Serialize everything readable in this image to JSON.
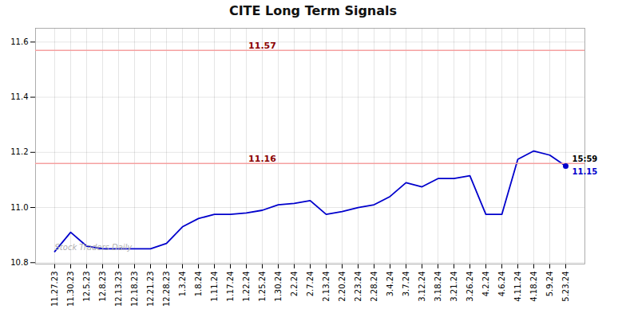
{
  "chart_data": {
    "type": "line",
    "title": "CITE Long Term Signals",
    "categories": [
      "11.27.23",
      "11.30.23",
      "12.5.23",
      "12.8.23",
      "12.13.23",
      "12.18.23",
      "12.21.23",
      "12.28.23",
      "1.3.24",
      "1.8.24",
      "1.11.24",
      "1.17.24",
      "1.22.24",
      "1.25.24",
      "1.30.24",
      "2.2.24",
      "2.7.24",
      "2.13.24",
      "2.20.24",
      "2.23.24",
      "2.28.24",
      "3.4.24",
      "3.7.24",
      "3.12.24",
      "3.18.24",
      "3.21.24",
      "3.26.24",
      "4.2.24",
      "4.6.24",
      "4.11.24",
      "4.18.24",
      "5.9.24",
      "5.23.24"
    ],
    "values": [
      10.84,
      10.91,
      10.86,
      10.85,
      10.85,
      10.85,
      10.85,
      10.87,
      10.93,
      10.96,
      10.975,
      10.975,
      10.98,
      10.99,
      11.01,
      11.015,
      11.025,
      10.975,
      10.985,
      11.0,
      11.01,
      11.04,
      11.09,
      11.075,
      11.105,
      11.105,
      11.115,
      10.975,
      10.975,
      11.175,
      11.205,
      11.19,
      11.15
    ],
    "color": "#0000cc",
    "ylim": [
      10.795,
      11.65
    ],
    "yticks": [
      10.8,
      {
        "value": 11.0,
        "label": "11.0"
      },
      11.2,
      11.4,
      11.6
    ],
    "grid": true,
    "annotations": [
      {
        "type": "hline",
        "value": 11.57,
        "label": "11.57",
        "color": "#f5a0a0"
      },
      {
        "type": "hline",
        "value": 11.16,
        "label": "11.16",
        "color": "#f5a0a0"
      },
      {
        "type": "point",
        "value": 11.15,
        "label": "11.15",
        "text": "15:59"
      },
      {
        "type": "text",
        "text": "Stock Traders Daily"
      }
    ]
  }
}
